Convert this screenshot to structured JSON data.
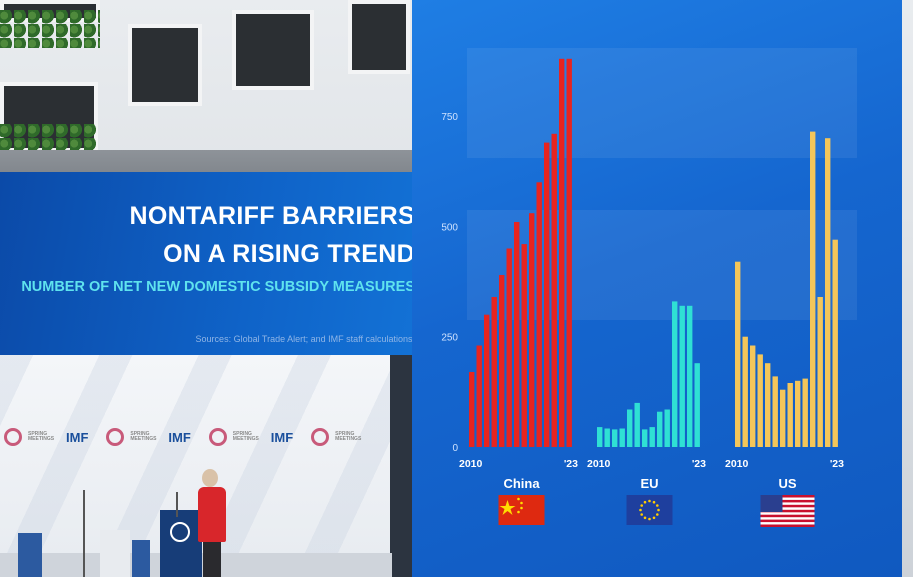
{
  "slide": {
    "title_line1": "NONTARIFF BARRIERS",
    "title_line2": "ON A RISING TREND",
    "subtitle": "NUMBER OF NET NEW DOMESTIC SUBSIDY MEASURES",
    "sources": "Sources: Global Trade Alert; and IMF staff calculations."
  },
  "stage": {
    "logo_text": "IMF",
    "meetings_text": "SPRING MEETINGS"
  },
  "colors": {
    "china": "#e8241f",
    "eu": "#2fe0d4",
    "us": "#f4c65a",
    "screen": "#1566cf"
  },
  "chart_data": {
    "type": "bar",
    "ylim": [
      0,
      900
    ],
    "yticks": [
      0,
      250,
      500,
      750
    ],
    "x_start_label": "2010",
    "x_end_label": "'23",
    "series": [
      {
        "name": "China",
        "flag": "china-flag",
        "values": [
          170,
          230,
          300,
          340,
          390,
          450,
          510,
          460,
          530,
          600,
          690,
          710,
          880,
          880
        ]
      },
      {
        "name": "EU",
        "flag": "eu-flag",
        "values": [
          45,
          42,
          40,
          42,
          85,
          100,
          40,
          45,
          80,
          85,
          330,
          320,
          320,
          190
        ]
      },
      {
        "name": "US",
        "flag": "us-flag",
        "values": [
          420,
          250,
          230,
          210,
          190,
          160,
          130,
          145,
          150,
          155,
          715,
          340,
          700,
          470
        ]
      }
    ]
  }
}
